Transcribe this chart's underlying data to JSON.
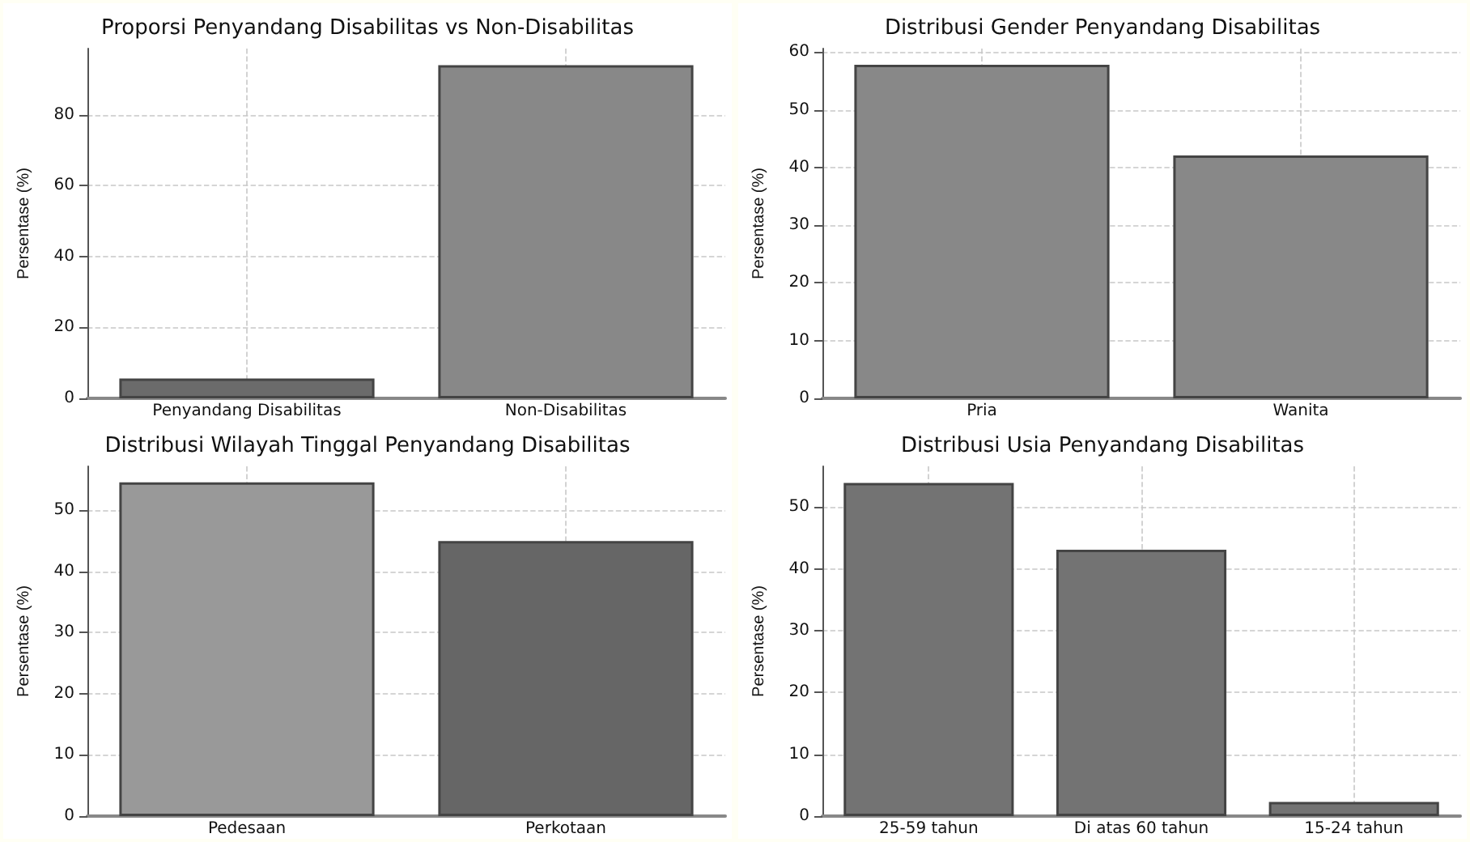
{
  "chart_data": [
    {
      "type": "bar",
      "title": "Proporsi Penyandang Disabilitas vs Non-Disabilitas",
      "ylabel": "Persentase (%)",
      "categories": [
        "Penyandang Disabilitas",
        "Non-Disabilitas"
      ],
      "colors": [
        "#6b6b6b",
        "#888888"
      ],
      "values": [
        5.6,
        94.0
      ],
      "ylim": [
        0,
        98.7
      ],
      "yticks": [
        0,
        20,
        40,
        60,
        80
      ],
      "grid": true
    },
    {
      "type": "bar",
      "title": "Distribusi Gender Penyandang Disabilitas",
      "ylabel": "Persentase (%)",
      "categories": [
        "Pria",
        "Wanita"
      ],
      "colors": [
        "#888888",
        "#888888"
      ],
      "values": [
        57.8,
        42.1
      ],
      "ylim": [
        0,
        60.6
      ],
      "yticks": [
        0,
        10,
        20,
        30,
        40,
        50,
        60
      ],
      "grid": true
    },
    {
      "type": "bar",
      "title": "Distribusi Wilayah Tinggal Penyandang Disabilitas",
      "ylabel": "Persentase (%)",
      "categories": [
        "Pedesaan",
        "Perkotaan"
      ],
      "colors": [
        "#999999",
        "#666666"
      ],
      "values": [
        54.6,
        45.0
      ],
      "ylim": [
        0,
        57.2
      ],
      "yticks": [
        0,
        10,
        20,
        30,
        40,
        50
      ],
      "grid": true
    },
    {
      "type": "bar",
      "title": "Distribusi Usia Penyandang Disabilitas",
      "ylabel": "Persentase (%)",
      "categories": [
        "25-59 tahun",
        "Di atas 60 tahun",
        "15-24 tahun"
      ],
      "colors": [
        "#737373",
        "#737373",
        "#737373"
      ],
      "values": [
        53.9,
        43.1,
        2.3
      ],
      "ylim": [
        0,
        56.6
      ],
      "yticks": [
        0,
        10,
        20,
        30,
        40,
        50
      ],
      "grid": true
    }
  ]
}
